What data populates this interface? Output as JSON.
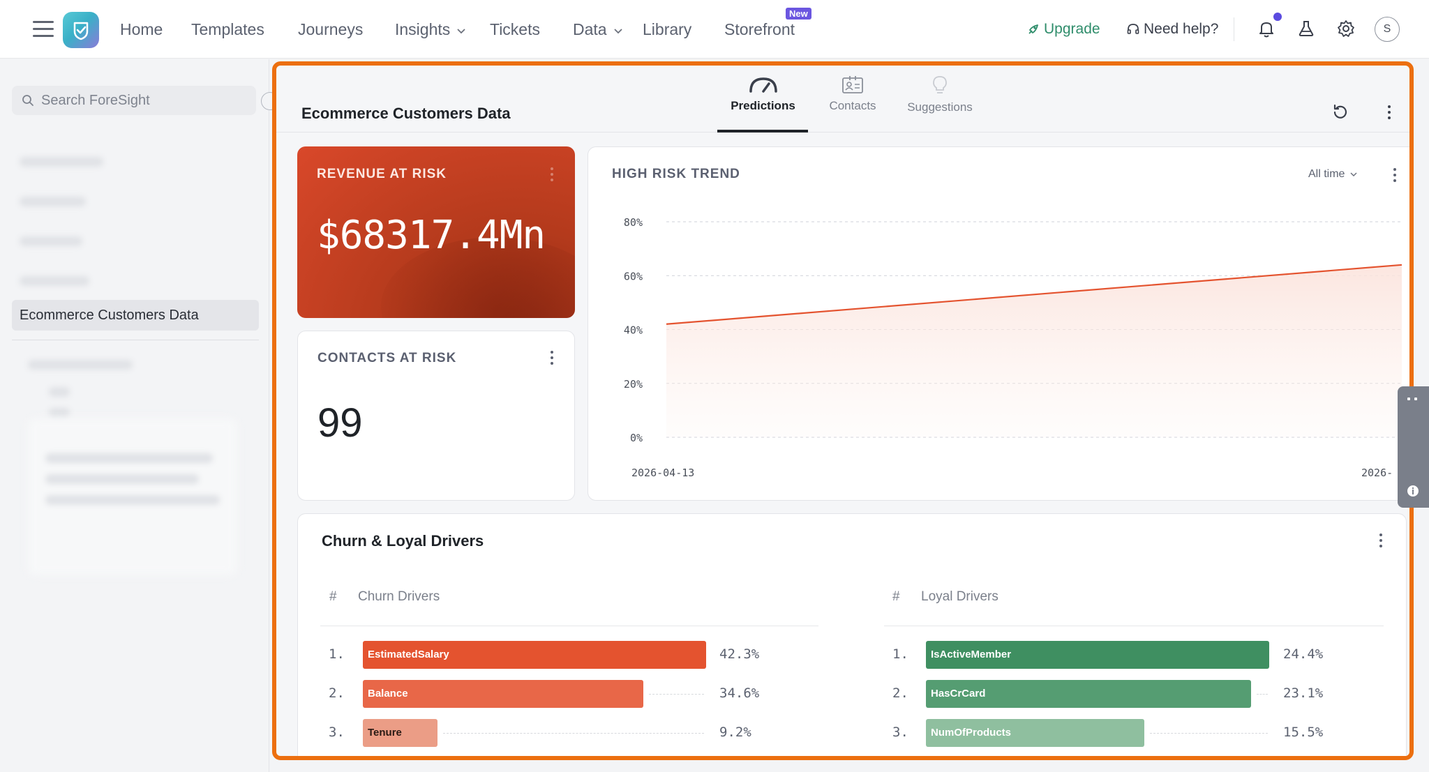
{
  "nav": {
    "items": [
      {
        "label": "Home"
      },
      {
        "label": "Templates"
      },
      {
        "label": "Journeys"
      },
      {
        "label": "Insights"
      },
      {
        "label": "Tickets"
      },
      {
        "label": "Data"
      },
      {
        "label": "Library"
      },
      {
        "label": "Storefront"
      }
    ],
    "new_badge": "New",
    "upgrade": "Upgrade",
    "help": "Need help?",
    "avatar_initial": "S",
    "icons": [
      "menu-icon",
      "app-logo",
      "chevron-down-icon",
      "rocket-icon",
      "headset-icon",
      "bell-icon",
      "flask-icon",
      "gear-icon"
    ]
  },
  "sidebar": {
    "search_placeholder": "Search ForeSight",
    "active_item": "Ecommerce Customers Data"
  },
  "panel": {
    "title": "Ecommerce Customers Data",
    "tabs": [
      {
        "label": "Predictions",
        "icon": "gauge-icon",
        "active": true
      },
      {
        "label": "Contacts",
        "icon": "contact-card-icon",
        "active": false
      },
      {
        "label": "Suggestions",
        "icon": "lightbulb-icon",
        "active": false
      }
    ],
    "header_icons": [
      "refresh-icon",
      "more-vertical-icon"
    ]
  },
  "revenue": {
    "title": "REVENUE AT RISK",
    "value": "$68317.4Mn"
  },
  "contacts": {
    "title": "CONTACTS AT RISK",
    "value": "99"
  },
  "trend": {
    "title": "HIGH RISK TREND",
    "filter": "All time",
    "x_labels": [
      "2026-04-13",
      "2026-"
    ],
    "y_labels": [
      "80%",
      "60%",
      "40%",
      "20%",
      "0%"
    ]
  },
  "chart_data": {
    "type": "area",
    "title": "HIGH RISK TREND",
    "x": [
      "2026-04-13",
      "2026-"
    ],
    "series": [
      {
        "values": [
          42,
          64
        ]
      }
    ],
    "ylim": [
      0,
      80
    ],
    "y_unit": "%",
    "grid": true,
    "color": "#e4532f"
  },
  "drivers": {
    "title": "Churn & Loyal Drivers",
    "hash": "#",
    "churn_header": "Churn Drivers",
    "loyal_header": "Loyal Drivers",
    "churn": [
      {
        "rank": "1.",
        "name": "EstimatedSalary",
        "pct": "42.3%",
        "value": 42.3,
        "color": "#e4532f"
      },
      {
        "rank": "2.",
        "name": "Balance",
        "pct": "34.6%",
        "value": 34.6,
        "color": "#e86748"
      },
      {
        "rank": "3.",
        "name": "Tenure",
        "pct": "9.2%",
        "value": 9.2,
        "color": "#eb9d86"
      }
    ],
    "loyal": [
      {
        "rank": "1.",
        "name": "IsActiveMember",
        "pct": "24.4%",
        "value": 24.4,
        "color": "#3f8f61"
      },
      {
        "rank": "2.",
        "name": "HasCrCard",
        "pct": "23.1%",
        "value": 23.1,
        "color": "#559d72"
      },
      {
        "rank": "3.",
        "name": "NumOfProducts",
        "pct": "15.5%",
        "value": 15.5,
        "color": "#8fbf9f"
      }
    ]
  },
  "colors": {
    "accent_orange": "#ec6f0f",
    "brand_purple": "#6b56e0",
    "upgrade_green": "#2f8d6b"
  }
}
